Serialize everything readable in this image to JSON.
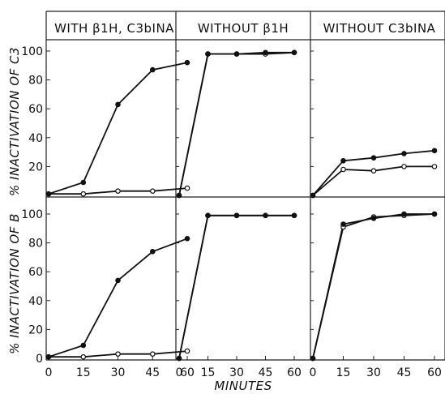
{
  "chart_data": {
    "type": "line",
    "column_headers": [
      "WITH β1H, C3bINA",
      "WITHOUT β1H",
      "WITHOUT C3bINA"
    ],
    "row_ylabels": [
      "% INACTIVATION OF C3",
      "% INACTIVATION OF B"
    ],
    "xlabel": "MINUTES",
    "x": [
      0,
      15,
      30,
      45,
      60
    ],
    "x_tick_labels": [
      "0",
      "15",
      "30",
      "45",
      "60"
    ],
    "ylim": [
      0,
      100
    ],
    "y_tick_labels": [
      "20",
      "40",
      "60",
      "80",
      "100"
    ],
    "y_tick_labels_bottom_row": [
      "0",
      "20",
      "40",
      "60",
      "80",
      "100"
    ],
    "panels": [
      {
        "row": 0,
        "col": 0,
        "series": [
          {
            "marker": "filled",
            "values": [
              1,
              9,
              63,
              87,
              92
            ]
          },
          {
            "marker": "open",
            "values": [
              1,
              1,
              3,
              3,
              5
            ]
          }
        ]
      },
      {
        "row": 0,
        "col": 1,
        "series": [
          {
            "marker": "filled",
            "values": [
              0,
              98,
              98,
              99,
              99
            ]
          },
          {
            "marker": "open",
            "values": [
              0,
              98,
              98,
              98,
              99
            ]
          }
        ]
      },
      {
        "row": 0,
        "col": 2,
        "series": [
          {
            "marker": "filled",
            "values": [
              0,
              24,
              26,
              29,
              31
            ]
          },
          {
            "marker": "open",
            "values": [
              0,
              18,
              17,
              20,
              20
            ]
          }
        ]
      },
      {
        "row": 1,
        "col": 0,
        "series": [
          {
            "marker": "filled",
            "values": [
              1,
              9,
              54,
              74,
              83
            ]
          },
          {
            "marker": "open",
            "values": [
              1,
              1,
              3,
              3,
              5
            ]
          }
        ]
      },
      {
        "row": 1,
        "col": 1,
        "series": [
          {
            "marker": "filled",
            "values": [
              0,
              99,
              99,
              99,
              99
            ]
          },
          {
            "marker": "open",
            "values": [
              0,
              99,
              99,
              99,
              99
            ]
          }
        ]
      },
      {
        "row": 1,
        "col": 2,
        "series": [
          {
            "marker": "filled",
            "values": [
              0,
              93,
              97,
              100,
              100
            ]
          },
          {
            "marker": "open",
            "values": [
              0,
              91,
              98,
              99,
              100
            ]
          }
        ]
      }
    ],
    "grid": false,
    "legend": "none"
  }
}
